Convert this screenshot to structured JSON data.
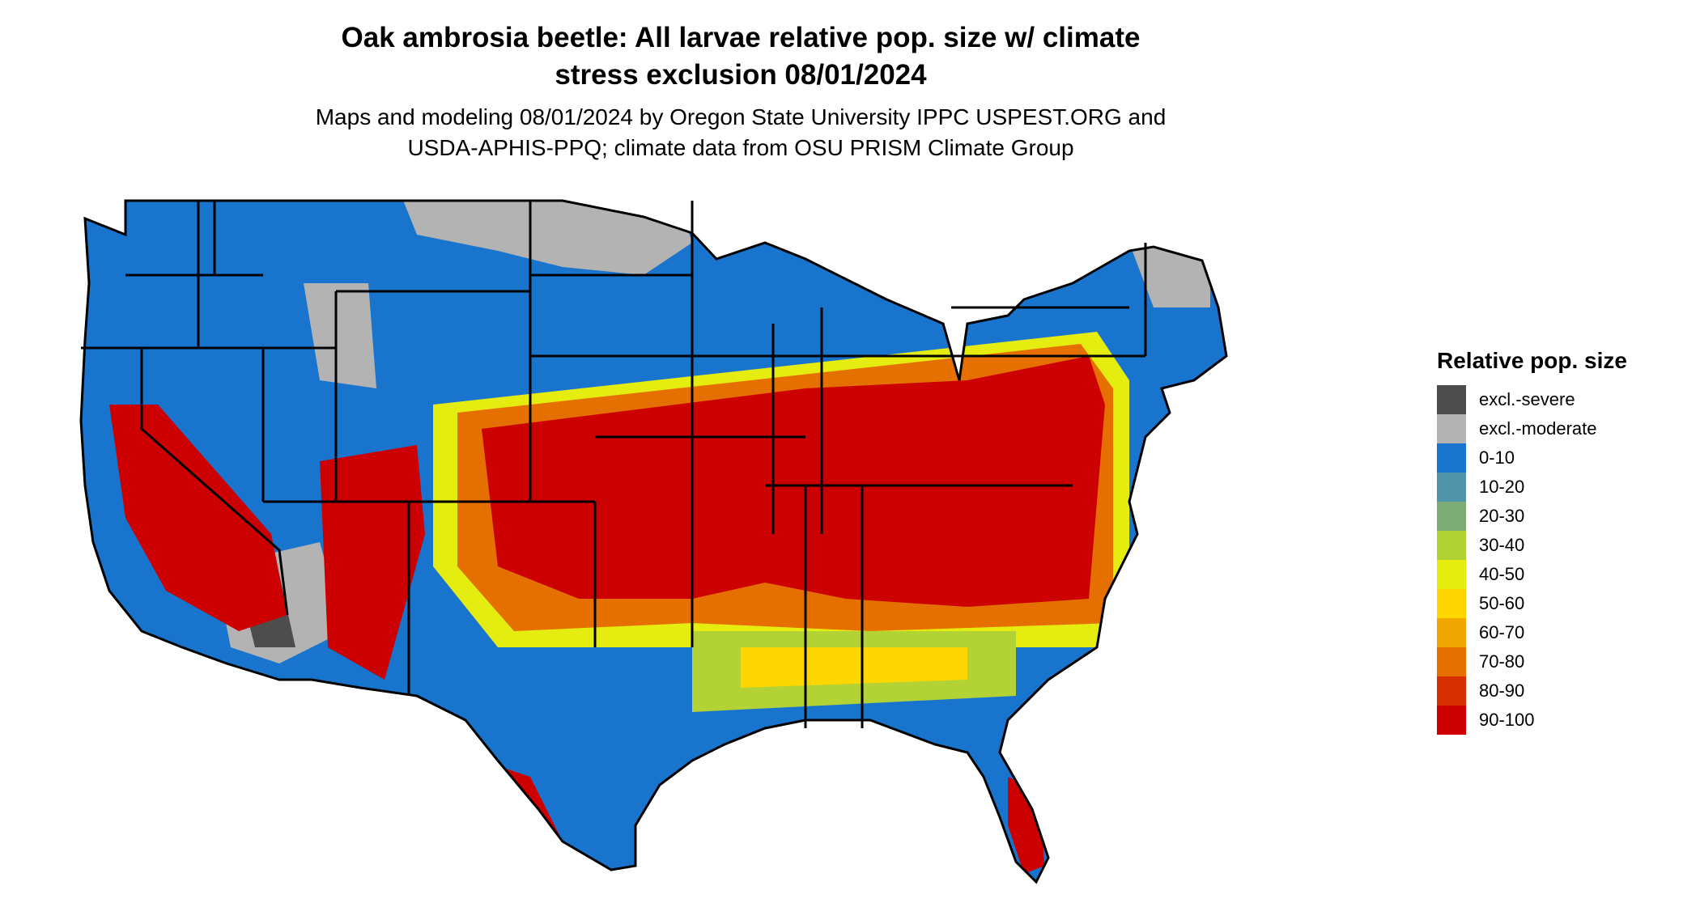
{
  "title_line1": "Oak ambrosia beetle: All larvae relative pop. size w/ climate",
  "title_line2": "stress exclusion 08/01/2024",
  "subtitle_line1": "Maps and modeling 08/01/2024 by Oregon State University IPPC USPEST.ORG and",
  "subtitle_line2": "USDA-APHIS-PPQ; climate data from OSU PRISM Climate Group",
  "legend": {
    "title": "Relative pop. size",
    "items": [
      {
        "label": "excl.-severe",
        "color": "#4d4d4d"
      },
      {
        "label": "excl.-moderate",
        "color": "#b3b3b3"
      },
      {
        "label": "0-10",
        "color": "#1874cd"
      },
      {
        "label": "10-20",
        "color": "#4f94a8"
      },
      {
        "label": "20-30",
        "color": "#7dac74"
      },
      {
        "label": "30-40",
        "color": "#b2d235"
      },
      {
        "label": "40-50",
        "color": "#e5ec10"
      },
      {
        "label": "50-60",
        "color": "#ffd700"
      },
      {
        "label": "60-70",
        "color": "#f0a800"
      },
      {
        "label": "70-80",
        "color": "#e57000"
      },
      {
        "label": "80-90",
        "color": "#d83000"
      },
      {
        "label": "90-100",
        "color": "#cc0000"
      }
    ]
  },
  "map": {
    "region": "conterminous-united-states",
    "dominant_north": "0-10",
    "dominant_south_central": "90-100",
    "exclusion_areas": [
      "north-dakota-north",
      "minnesota-north",
      "wyoming",
      "southern-california-arizona-desert",
      "maine-north"
    ]
  }
}
